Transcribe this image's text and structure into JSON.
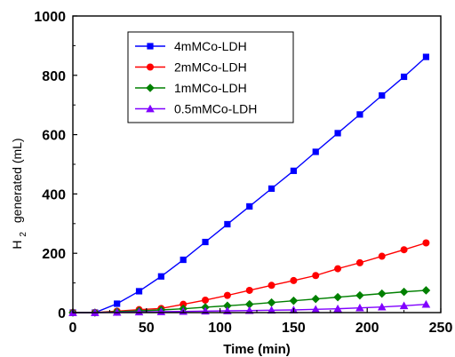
{
  "chart_data": {
    "type": "line",
    "xlabel": "Time (min)",
    "ylabel_prefix": "H",
    "ylabel_subscript": "2",
    "ylabel_rest": "generated (mL)",
    "xlim": [
      0,
      250
    ],
    "ylim": [
      0,
      1000
    ],
    "x_ticks": [
      "0",
      "50",
      "100",
      "150",
      "200",
      "250"
    ],
    "y_ticks": [
      "0",
      "200",
      "400",
      "600",
      "800",
      "1000"
    ],
    "grid": false,
    "legend_position": "top-left",
    "x": [
      0,
      15,
      30,
      45,
      60,
      75,
      90,
      105,
      120,
      135,
      150,
      165,
      180,
      195,
      210,
      225,
      240
    ],
    "series": [
      {
        "name": "4mMCo-LDH",
        "color": "#0000ff",
        "marker": "square",
        "values": [
          0,
          0,
          30,
          72,
          122,
          178,
          238,
          298,
          358,
          418,
          478,
          542,
          605,
          668,
          732,
          795,
          862
        ]
      },
      {
        "name": "2mMCo-LDH",
        "color": "#ff0000",
        "marker": "circle",
        "values": [
          0,
          0,
          5,
          10,
          14,
          28,
          42,
          58,
          75,
          92,
          108,
          125,
          148,
          168,
          190,
          212,
          235
        ]
      },
      {
        "name": "1mMCo-LDH",
        "color": "#008000",
        "marker": "diamond",
        "values": [
          0,
          0,
          3,
          6,
          9,
          13,
          18,
          23,
          28,
          34,
          40,
          46,
          52,
          58,
          64,
          70,
          75
        ]
      },
      {
        "name": "0.5mMCo-LDH",
        "color": "#8000ff",
        "marker": "triangle",
        "values": [
          0,
          0,
          1,
          2,
          3,
          4,
          5,
          6,
          7,
          8,
          9,
          11,
          13,
          16,
          19,
          23,
          28
        ]
      }
    ]
  }
}
